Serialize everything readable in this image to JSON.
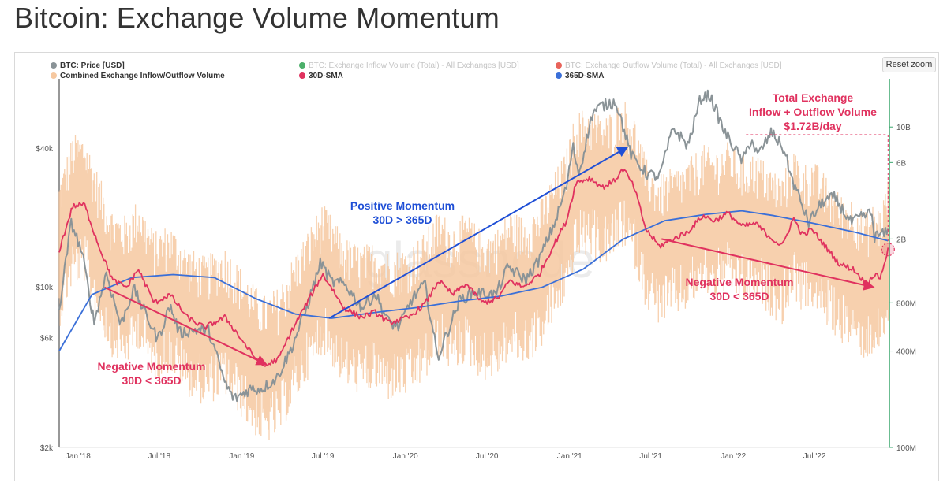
{
  "page_title": "Bitcoin: Exchange Volume Momentum",
  "reset_zoom_label": "Reset zoom",
  "watermark": "glassnode",
  "colors": {
    "price": "#8a9397",
    "combined_volume": "#f6c8a0",
    "sma30": "#e0325f",
    "sma365": "#3a6fd8",
    "inflow_legend": "#4caf6a",
    "outflow_legend": "#e8635a",
    "annotation_red": "#e0325f",
    "annotation_blue": "#1f4fd6",
    "right_axis_line": "#3aa76d"
  },
  "chart_data": {
    "type": "line",
    "legend": [
      {
        "name": "BTC: Price [USD]",
        "color": "#8a9397",
        "enabled": true
      },
      {
        "name": "BTC: Exchange Inflow Volume (Total) - All Exchanges [USD]",
        "color": "#4caf6a",
        "enabled": false
      },
      {
        "name": "BTC: Exchange Outflow Volume (Total) - All Exchanges [USD]",
        "color": "#e8635a",
        "enabled": false
      },
      {
        "name": "Combined Exchange Inflow/Outflow Volume",
        "color": "#f6c8a0",
        "enabled": true
      },
      {
        "name": "30D-SMA",
        "color": "#e0325f",
        "enabled": true
      },
      {
        "name": "365D-SMA",
        "color": "#3a6fd8",
        "enabled": true
      }
    ],
    "x_tick_labels": [
      "Jan '18",
      "Jul '18",
      "Jan '19",
      "Jul '19",
      "Jan '20",
      "Jul '20",
      "Jan '21",
      "Jul '21",
      "Jan '22",
      "Jul '22"
    ],
    "x_range": [
      "2017-11-20",
      "2022-12-15"
    ],
    "left_axis": {
      "scale": "log",
      "range": [
        2000,
        80000
      ],
      "ticks": [
        {
          "value": 2000,
          "label": "$2k"
        },
        {
          "value": 6000,
          "label": "$6k"
        },
        {
          "value": 10000,
          "label": "$10k"
        },
        {
          "value": 40000,
          "label": "$40k"
        }
      ]
    },
    "right_axis": {
      "scale": "log",
      "range": [
        100000000,
        20000000000
      ],
      "ticks": [
        {
          "value": 100000000,
          "label": "100M"
        },
        {
          "value": 400000000,
          "label": "400M"
        },
        {
          "value": 800000000,
          "label": "800M"
        },
        {
          "value": 2000000000,
          "label": "2B"
        },
        {
          "value": 6000000000,
          "label": "6B"
        },
        {
          "value": 10000000000,
          "label": "10B"
        }
      ]
    },
    "series": [
      {
        "name": "BTC: Price [USD]",
        "axis": "left",
        "points": [
          [
            "2017-11-20",
            8000
          ],
          [
            "2017-12-17",
            19000
          ],
          [
            "2018-01-10",
            14000
          ],
          [
            "2018-02-06",
            7000
          ],
          [
            "2018-03-05",
            11500
          ],
          [
            "2018-04-06",
            6800
          ],
          [
            "2018-05-05",
            9800
          ],
          [
            "2018-06-28",
            5900
          ],
          [
            "2018-07-25",
            8300
          ],
          [
            "2018-08-15",
            6300
          ],
          [
            "2018-09-20",
            6500
          ],
          [
            "2018-10-20",
            6400
          ],
          [
            "2018-11-25",
            3800
          ],
          [
            "2018-12-15",
            3250
          ],
          [
            "2019-01-20",
            3600
          ],
          [
            "2019-02-15",
            3600
          ],
          [
            "2019-03-20",
            4000
          ],
          [
            "2019-04-20",
            5300
          ],
          [
            "2019-05-25",
            8000
          ],
          [
            "2019-06-26",
            12800
          ],
          [
            "2019-07-20",
            10500
          ],
          [
            "2019-08-20",
            10200
          ],
          [
            "2019-09-26",
            8100
          ],
          [
            "2019-10-26",
            9300
          ],
          [
            "2019-11-25",
            7000
          ],
          [
            "2019-12-18",
            6700
          ],
          [
            "2020-01-15",
            8800
          ],
          [
            "2020-02-13",
            10300
          ],
          [
            "2020-03-13",
            4900
          ],
          [
            "2020-04-30",
            8700
          ],
          [
            "2020-06-01",
            9500
          ],
          [
            "2020-07-20",
            9200
          ],
          [
            "2020-08-17",
            12200
          ],
          [
            "2020-09-25",
            10700
          ],
          [
            "2020-10-25",
            13100
          ],
          [
            "2020-11-30",
            19200
          ],
          [
            "2020-12-27",
            28000
          ],
          [
            "2021-01-08",
            41000
          ],
          [
            "2021-01-22",
            31000
          ],
          [
            "2021-02-21",
            57000
          ],
          [
            "2021-03-13",
            61000
          ],
          [
            "2021-04-14",
            64000
          ],
          [
            "2021-05-19",
            37000
          ],
          [
            "2021-06-22",
            31000
          ],
          [
            "2021-07-20",
            30000
          ],
          [
            "2021-08-20",
            49000
          ],
          [
            "2021-09-22",
            41000
          ],
          [
            "2021-10-20",
            66000
          ],
          [
            "2021-11-10",
            68000
          ],
          [
            "2021-12-10",
            48000
          ],
          [
            "2022-01-22",
            35000
          ],
          [
            "2022-02-10",
            44000
          ],
          [
            "2022-02-24",
            37000
          ],
          [
            "2022-03-28",
            47000
          ],
          [
            "2022-04-25",
            39000
          ],
          [
            "2022-05-10",
            30000
          ],
          [
            "2022-06-18",
            19000
          ],
          [
            "2022-07-20",
            23500
          ],
          [
            "2022-08-15",
            24400
          ],
          [
            "2022-09-20",
            19000
          ],
          [
            "2022-10-25",
            20500
          ],
          [
            "2022-11-05",
            21000
          ],
          [
            "2022-11-12",
            16500
          ],
          [
            "2022-12-12",
            17200
          ]
        ]
      },
      {
        "name": "30D-SMA",
        "axis": "right",
        "points": [
          [
            "2017-11-20",
            1700000000
          ],
          [
            "2017-12-20",
            3200000000
          ],
          [
            "2018-01-15",
            3300000000
          ],
          [
            "2018-02-20",
            1700000000
          ],
          [
            "2018-03-20",
            1100000000
          ],
          [
            "2018-04-20",
            1000000000
          ],
          [
            "2018-05-15",
            1300000000
          ],
          [
            "2018-06-20",
            800000000
          ],
          [
            "2018-07-25",
            900000000
          ],
          [
            "2018-09-01",
            650000000
          ],
          [
            "2018-10-10",
            560000000
          ],
          [
            "2018-11-25",
            650000000
          ],
          [
            "2018-12-25",
            500000000
          ],
          [
            "2019-01-25",
            380000000
          ],
          [
            "2019-02-20",
            320000000
          ],
          [
            "2019-03-25",
            360000000
          ],
          [
            "2019-04-20",
            520000000
          ],
          [
            "2019-05-15",
            700000000
          ],
          [
            "2019-06-30",
            1200000000
          ],
          [
            "2019-07-20",
            1000000000
          ],
          [
            "2019-08-15",
            750000000
          ],
          [
            "2019-09-25",
            650000000
          ],
          [
            "2019-10-25",
            700000000
          ],
          [
            "2019-11-25",
            600000000
          ],
          [
            "2020-01-10",
            650000000
          ],
          [
            "2020-02-15",
            800000000
          ],
          [
            "2020-03-15",
            1100000000
          ],
          [
            "2020-04-15",
            900000000
          ],
          [
            "2020-05-15",
            1050000000
          ],
          [
            "2020-06-20",
            800000000
          ],
          [
            "2020-07-25",
            850000000
          ],
          [
            "2020-08-20",
            1100000000
          ],
          [
            "2020-09-20",
            1000000000
          ],
          [
            "2020-10-25",
            1200000000
          ],
          [
            "2020-11-25",
            1800000000
          ],
          [
            "2020-12-25",
            2600000000
          ],
          [
            "2021-01-15",
            4500000000
          ],
          [
            "2021-02-15",
            4800000000
          ],
          [
            "2021-03-15",
            4200000000
          ],
          [
            "2021-04-10",
            4600000000
          ],
          [
            "2021-05-01",
            5500000000
          ],
          [
            "2021-05-25",
            4200000000
          ],
          [
            "2021-06-20",
            2300000000
          ],
          [
            "2021-07-20",
            1800000000
          ],
          [
            "2021-08-20",
            2000000000
          ],
          [
            "2021-09-20",
            2200000000
          ],
          [
            "2021-10-25",
            2800000000
          ],
          [
            "2021-11-20",
            2600000000
          ],
          [
            "2021-12-20",
            2900000000
          ],
          [
            "2022-01-20",
            2400000000
          ],
          [
            "2022-02-20",
            2500000000
          ],
          [
            "2022-03-20",
            2100000000
          ],
          [
            "2022-04-20",
            1800000000
          ],
          [
            "2022-05-15",
            2700000000
          ],
          [
            "2022-06-05",
            2100000000
          ],
          [
            "2022-06-25",
            2300000000
          ],
          [
            "2022-07-25",
            1800000000
          ],
          [
            "2022-08-25",
            1400000000
          ],
          [
            "2022-09-25",
            1300000000
          ],
          [
            "2022-10-25",
            1050000000
          ],
          [
            "2022-11-10",
            1200000000
          ],
          [
            "2022-11-25",
            1150000000
          ],
          [
            "2022-12-12",
            1720000000
          ]
        ]
      },
      {
        "name": "365D-SMA",
        "axis": "right",
        "points": [
          [
            "2017-11-20",
            400000000
          ],
          [
            "2018-02-01",
            900000000
          ],
          [
            "2018-05-01",
            1150000000
          ],
          [
            "2018-08-01",
            1200000000
          ],
          [
            "2018-11-01",
            1150000000
          ],
          [
            "2019-02-01",
            850000000
          ],
          [
            "2019-05-01",
            680000000
          ],
          [
            "2019-07-20",
            640000000
          ],
          [
            "2019-11-01",
            700000000
          ],
          [
            "2020-02-01",
            750000000
          ],
          [
            "2020-05-01",
            820000000
          ],
          [
            "2020-08-01",
            880000000
          ],
          [
            "2020-11-01",
            1000000000
          ],
          [
            "2021-02-01",
            1300000000
          ],
          [
            "2021-05-01",
            2000000000
          ],
          [
            "2021-08-01",
            2600000000
          ],
          [
            "2021-11-01",
            2850000000
          ],
          [
            "2022-01-20",
            3000000000
          ],
          [
            "2022-04-01",
            2800000000
          ],
          [
            "2022-07-01",
            2500000000
          ],
          [
            "2022-10-01",
            2200000000
          ],
          [
            "2022-12-12",
            1950000000
          ]
        ]
      },
      {
        "name": "Combined Exchange Inflow/Outflow Volume",
        "axis": "right",
        "description": "Daily values oscillating around the 30D-SMA"
      }
    ],
    "annotations": [
      {
        "lines": [
          "Negative Momentum",
          "30D < 365D"
        ],
        "color": "#e0325f",
        "arrow_from": [
          "2018-03-01",
          1000000000
        ],
        "arrow_to": [
          "2019-02-25",
          330000000
        ]
      },
      {
        "lines": [
          "Positive Momentum",
          "30D > 365D"
        ],
        "color": "#1f4fd6",
        "arrow_from": [
          "2019-07-15",
          640000000
        ],
        "arrow_to": [
          "2021-05-10",
          7500000000
        ]
      },
      {
        "lines": [
          "Negative Momentum",
          "30D < 365D"
        ],
        "color": "#e0325f",
        "arrow_from": [
          "2021-07-25",
          2000000000
        ],
        "arrow_to": [
          "2022-11-10",
          1000000000
        ]
      },
      {
        "lines": [
          "Total Exchange",
          "Inflow + Outflow Volume",
          "$1.72B/day"
        ],
        "color": "#e0325f",
        "marker": [
          "2022-12-12",
          1720000000
        ]
      }
    ]
  }
}
